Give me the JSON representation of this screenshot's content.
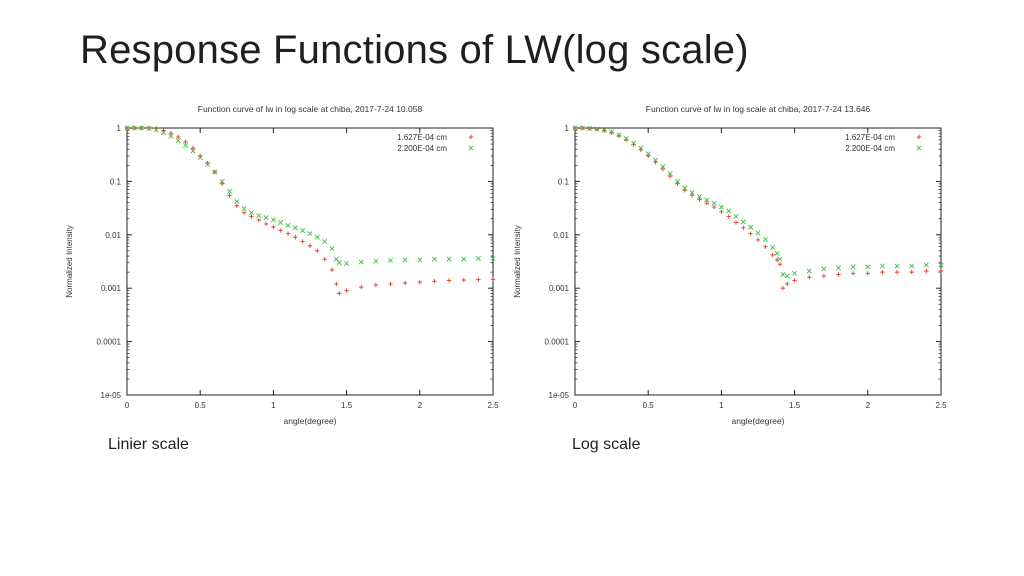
{
  "slide": {
    "title": "Response Functions of LW(log scale)",
    "captions": [
      "Linier scale",
      "Log scale"
    ]
  },
  "colors": {
    "series1": "#e8392b",
    "series2": "#3fbf3f",
    "axis": "#222222"
  },
  "chart_data": [
    {
      "type": "scatter",
      "title": "Function curve of lw in log scale at chiba, 2017-7-24 10.058",
      "xlabel": "angle(degree)",
      "ylabel": "Normalized Intensity",
      "xlim": [
        0,
        2.5
      ],
      "ylim": [
        1e-05,
        1
      ],
      "y_scale": "log",
      "x_ticks": [
        "0",
        "0.5",
        "1",
        "1.5",
        "2",
        "2.5"
      ],
      "y_ticks": [
        "1e-05",
        "0.0001",
        "0.001",
        "0.01",
        "0.1",
        "1"
      ],
      "legend_position": "top-right",
      "series": [
        {
          "name": "1.627E-04 cm",
          "marker": "+",
          "x": [
            0,
            0.05,
            0.1,
            0.15,
            0.2,
            0.25,
            0.3,
            0.35,
            0.4,
            0.45,
            0.5,
            0.55,
            0.6,
            0.65,
            0.7,
            0.75,
            0.8,
            0.85,
            0.9,
            0.95,
            1.0,
            1.05,
            1.1,
            1.15,
            1.2,
            1.25,
            1.3,
            1.35,
            1.4,
            1.43,
            1.45,
            1.5,
            1.6,
            1.7,
            1.8,
            1.9,
            2.0,
            2.1,
            2.2,
            2.3,
            2.4,
            2.5
          ],
          "y": [
            1,
            1,
            1,
            1,
            0.98,
            0.9,
            0.8,
            0.68,
            0.55,
            0.42,
            0.3,
            0.22,
            0.15,
            0.09,
            0.055,
            0.035,
            0.026,
            0.022,
            0.019,
            0.016,
            0.014,
            0.012,
            0.0105,
            0.009,
            0.0075,
            0.0062,
            0.005,
            0.0035,
            0.0022,
            0.0012,
            0.0008,
            0.0009,
            0.00105,
            0.00115,
            0.0012,
            0.00125,
            0.0013,
            0.00135,
            0.0014,
            0.00142,
            0.00145,
            0.00147
          ]
        },
        {
          "name": "2.200E-04 cm",
          "marker": "x",
          "x": [
            0,
            0.05,
            0.1,
            0.15,
            0.2,
            0.25,
            0.3,
            0.35,
            0.4,
            0.45,
            0.5,
            0.55,
            0.6,
            0.65,
            0.7,
            0.75,
            0.8,
            0.85,
            0.9,
            0.95,
            1.0,
            1.05,
            1.1,
            1.15,
            1.2,
            1.25,
            1.3,
            1.35,
            1.4,
            1.43,
            1.45,
            1.5,
            1.6,
            1.7,
            1.8,
            1.9,
            2.0,
            2.1,
            2.2,
            2.3,
            2.4,
            2.5
          ],
          "y": [
            1,
            1,
            1,
            0.98,
            0.92,
            0.82,
            0.7,
            0.58,
            0.47,
            0.37,
            0.28,
            0.21,
            0.15,
            0.1,
            0.065,
            0.042,
            0.031,
            0.026,
            0.023,
            0.021,
            0.019,
            0.017,
            0.015,
            0.0135,
            0.012,
            0.0105,
            0.009,
            0.0075,
            0.0055,
            0.0035,
            0.003,
            0.0029,
            0.0031,
            0.0032,
            0.0033,
            0.0034,
            0.0034,
            0.0035,
            0.0035,
            0.0035,
            0.0036,
            0.0036
          ]
        }
      ]
    },
    {
      "type": "scatter",
      "title": "Function curve of lw in log scale at chiba, 2017-7-24 13.646",
      "xlabel": "angle(degree)",
      "ylabel": "Normalized Intensity",
      "xlim": [
        0,
        2.5
      ],
      "ylim": [
        1e-05,
        1
      ],
      "y_scale": "log",
      "x_ticks": [
        "0",
        "0.5",
        "1",
        "1.5",
        "2",
        "2.5"
      ],
      "y_ticks": [
        "1e-05",
        "0.0001",
        "0.001",
        "0.01",
        "0.1",
        "1"
      ],
      "legend_position": "top-right",
      "series": [
        {
          "name": "1.627E-04 cm",
          "marker": "+",
          "x": [
            0,
            0.05,
            0.1,
            0.15,
            0.2,
            0.25,
            0.3,
            0.35,
            0.4,
            0.45,
            0.5,
            0.55,
            0.6,
            0.65,
            0.7,
            0.75,
            0.8,
            0.85,
            0.9,
            0.95,
            1.0,
            1.05,
            1.1,
            1.15,
            1.2,
            1.25,
            1.3,
            1.35,
            1.38,
            1.4,
            1.42,
            1.45,
            1.5,
            1.6,
            1.7,
            1.8,
            1.9,
            2.0,
            2.1,
            2.2,
            2.3,
            2.4,
            2.5
          ],
          "y": [
            1,
            1,
            0.98,
            0.95,
            0.9,
            0.82,
            0.72,
            0.6,
            0.49,
            0.39,
            0.3,
            0.23,
            0.17,
            0.125,
            0.09,
            0.068,
            0.055,
            0.046,
            0.039,
            0.033,
            0.027,
            0.022,
            0.017,
            0.0135,
            0.0105,
            0.008,
            0.006,
            0.0042,
            0.0034,
            0.0028,
            0.001,
            0.0012,
            0.0014,
            0.0016,
            0.0017,
            0.0018,
            0.0019,
            0.0019,
            0.002,
            0.002,
            0.002,
            0.0021,
            0.0021
          ]
        },
        {
          "name": "2.200E-04 cm",
          "marker": "x",
          "x": [
            0,
            0.05,
            0.1,
            0.15,
            0.2,
            0.25,
            0.3,
            0.35,
            0.4,
            0.45,
            0.5,
            0.55,
            0.6,
            0.65,
            0.7,
            0.75,
            0.8,
            0.85,
            0.9,
            0.95,
            1.0,
            1.05,
            1.1,
            1.15,
            1.2,
            1.25,
            1.3,
            1.35,
            1.38,
            1.4,
            1.42,
            1.45,
            1.5,
            1.6,
            1.7,
            1.8,
            1.9,
            2.0,
            2.1,
            2.2,
            2.3,
            2.4,
            2.5
          ],
          "y": [
            1,
            1,
            0.98,
            0.96,
            0.91,
            0.84,
            0.74,
            0.63,
            0.52,
            0.42,
            0.33,
            0.25,
            0.19,
            0.14,
            0.1,
            0.075,
            0.062,
            0.052,
            0.045,
            0.039,
            0.033,
            0.028,
            0.022,
            0.0175,
            0.0138,
            0.0108,
            0.0082,
            0.0058,
            0.0045,
            0.0035,
            0.0018,
            0.0017,
            0.0019,
            0.0021,
            0.0023,
            0.0024,
            0.0025,
            0.0025,
            0.0026,
            0.0026,
            0.0026,
            0.0027,
            0.0027
          ]
        }
      ]
    }
  ]
}
